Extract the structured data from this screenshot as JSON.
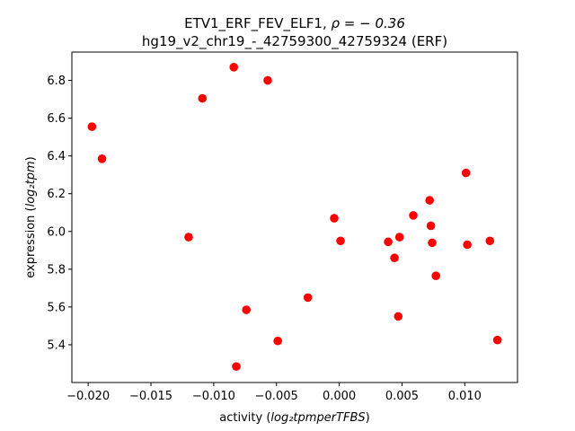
{
  "chart_data": {
    "type": "scatter",
    "title_line1": "ETV1_ERF_FEV_ELF1, ",
    "title_rho": "ρ = − 0.36",
    "title_line2": "hg19_v2_chr19_-_42759300_42759324 (ERF)",
    "xlabel_prefix": "activity (",
    "xlabel_math": "log₂tpmperTFBS",
    "xlabel_suffix": ")",
    "ylabel_prefix": "expression (",
    "ylabel_math": "log₂tpm",
    "ylabel_suffix": ")",
    "xlim": [
      -0.0213,
      0.0142
    ],
    "ylim": [
      5.2,
      6.95
    ],
    "xticks": [
      -0.02,
      -0.015,
      -0.01,
      -0.005,
      0.0,
      0.005,
      0.01
    ],
    "xtick_labels": [
      "−0.020",
      "−0.015",
      "−0.010",
      "−0.005",
      "0.000",
      "0.005",
      "0.010"
    ],
    "yticks": [
      5.4,
      5.6,
      5.8,
      6.0,
      6.2,
      6.4,
      6.6,
      6.8
    ],
    "ytick_labels": [
      "5.4",
      "5.6",
      "5.8",
      "6.0",
      "6.2",
      "6.4",
      "6.6",
      "6.8"
    ],
    "marker_color": "#ff0000",
    "points": [
      {
        "x": -0.0197,
        "y": 6.555
      },
      {
        "x": -0.0189,
        "y": 6.385
      },
      {
        "x": -0.0109,
        "y": 6.705
      },
      {
        "x": -0.012,
        "y": 5.97
      },
      {
        "x": -0.0084,
        "y": 6.87
      },
      {
        "x": -0.0057,
        "y": 6.8
      },
      {
        "x": -0.0074,
        "y": 5.585
      },
      {
        "x": -0.0082,
        "y": 5.285
      },
      {
        "x": -0.0049,
        "y": 5.42
      },
      {
        "x": -0.0025,
        "y": 5.65
      },
      {
        "x": -0.0004,
        "y": 6.07
      },
      {
        "x": 0.0001,
        "y": 5.95
      },
      {
        "x": 0.0039,
        "y": 5.945
      },
      {
        "x": 0.0044,
        "y": 5.86
      },
      {
        "x": 0.0048,
        "y": 5.97
      },
      {
        "x": 0.0047,
        "y": 5.55
      },
      {
        "x": 0.0059,
        "y": 6.085
      },
      {
        "x": 0.0072,
        "y": 6.165
      },
      {
        "x": 0.0073,
        "y": 6.03
      },
      {
        "x": 0.0074,
        "y": 5.94
      },
      {
        "x": 0.0077,
        "y": 5.765
      },
      {
        "x": 0.0101,
        "y": 6.31
      },
      {
        "x": 0.0102,
        "y": 5.93
      },
      {
        "x": 0.012,
        "y": 5.95
      },
      {
        "x": 0.0126,
        "y": 5.425
      }
    ]
  }
}
